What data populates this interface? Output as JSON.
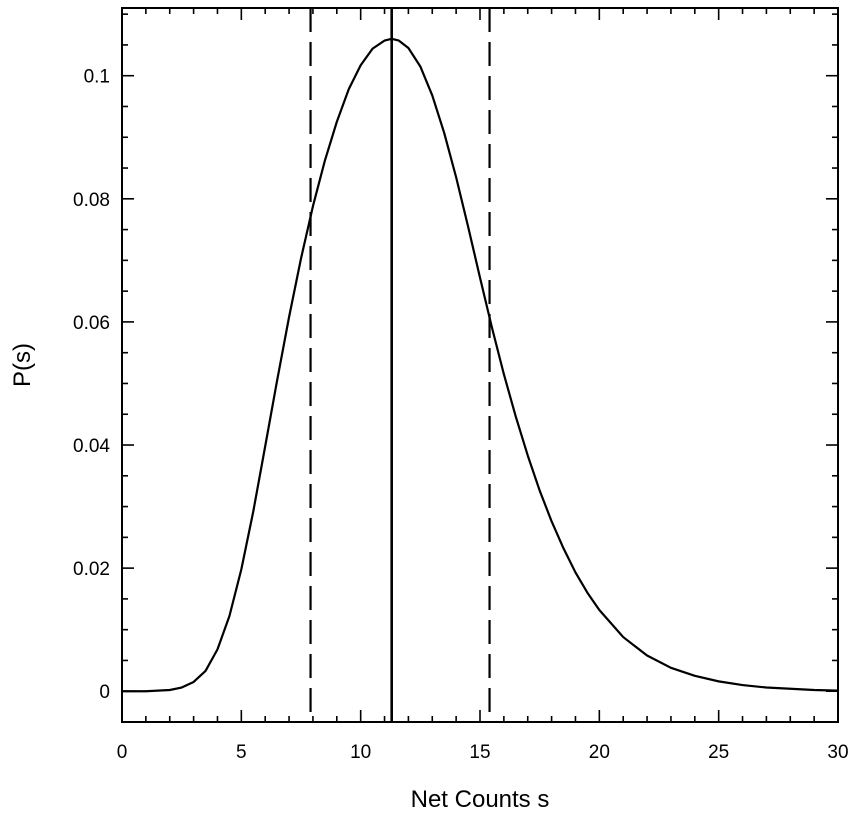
{
  "chart_data": {
    "type": "line",
    "title": "",
    "xlabel": "Net Counts s",
    "ylabel": "P(s)",
    "xlim": [
      0,
      30
    ],
    "ylim": [
      -0.005,
      0.111
    ],
    "grid": false,
    "x_ticks": [
      0,
      5,
      10,
      15,
      20,
      25,
      30
    ],
    "x_tick_labels": [
      "0",
      "5",
      "10",
      "15",
      "20",
      "25",
      "30"
    ],
    "x_minor_step": 1,
    "y_ticks": [
      0,
      0.02,
      0.04,
      0.06,
      0.08,
      0.1
    ],
    "y_tick_labels": [
      "0",
      "0.02",
      "0.04",
      "0.06",
      "0.08",
      "0.1"
    ],
    "y_minor_step": 0.005,
    "series": [
      {
        "x": [
          0,
          1,
          2,
          2.5,
          3,
          3.5,
          4,
          4.5,
          5,
          5.5,
          6,
          6.5,
          7,
          7.5,
          8,
          8.5,
          9,
          9.5,
          10,
          10.5,
          11,
          11.3,
          11.6,
          12,
          12.5,
          13,
          13.5,
          14,
          14.5,
          15,
          15.5,
          16,
          16.5,
          17,
          17.5,
          18,
          18.5,
          19,
          19.5,
          20,
          21,
          22,
          23,
          24,
          25,
          26,
          27,
          28,
          29,
          30
        ],
        "y": [
          0,
          0,
          0.0002,
          0.0006,
          0.0015,
          0.0033,
          0.0068,
          0.0122,
          0.0198,
          0.0292,
          0.0398,
          0.0505,
          0.0608,
          0.0703,
          0.0788,
          0.0862,
          0.0925,
          0.0978,
          0.1017,
          0.1044,
          0.1057,
          0.106,
          0.1057,
          0.1045,
          0.1015,
          0.0968,
          0.0907,
          0.0835,
          0.0755,
          0.0672,
          0.0591,
          0.0515,
          0.0446,
          0.0383,
          0.0326,
          0.0276,
          0.0232,
          0.0193,
          0.016,
          0.0132,
          0.0088,
          0.0058,
          0.0038,
          0.0025,
          0.0016,
          0.001,
          0.0006,
          0.0004,
          0.0002,
          0.0001
        ],
        "color": "#000000"
      }
    ],
    "vlines": [
      {
        "x": 7.9,
        "style": "dashed"
      },
      {
        "x": 11.3,
        "style": "solid"
      },
      {
        "x": 15.4,
        "style": "dashed"
      }
    ]
  }
}
